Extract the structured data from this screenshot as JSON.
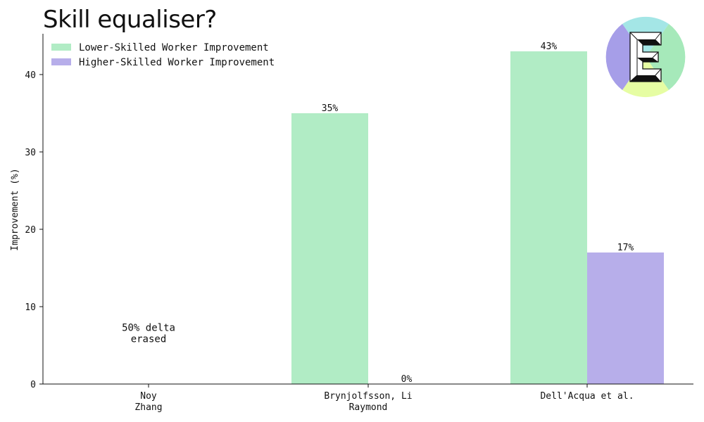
{
  "title": "Skill equaliser?",
  "colors": {
    "lower": "#b1ecc5",
    "higher": "#b7aeea",
    "logo_top": "#a4e6e6",
    "logo_right": "#a6e9ba",
    "logo_bottom": "#e6fda3",
    "logo_left": "#a69ee8"
  },
  "logo_icon": "E-monogram-logo",
  "chart_data": {
    "type": "bar",
    "categories": [
      [
        "Noy",
        "Zhang"
      ],
      [
        "Brynjolfsson, Li",
        "Raymond"
      ],
      [
        "Dell'Acqua et al."
      ]
    ],
    "series": [
      {
        "name": "Lower-Skilled Worker Improvement",
        "values": [
          null,
          35,
          43
        ],
        "labels": [
          "",
          "35%",
          "43%"
        ]
      },
      {
        "name": "Higher-Skilled Worker Improvement",
        "values": [
          null,
          0,
          17
        ],
        "labels": [
          "",
          "0%",
          "17%"
        ]
      }
    ],
    "ylabel": "Improvement (%)",
    "xlabel": "",
    "ylim": [
      0,
      45
    ],
    "yticks": [
      0,
      10,
      20,
      30,
      40
    ],
    "annotation": {
      "lines": [
        "50% delta",
        "erased"
      ],
      "category_index": 0,
      "y": 6.5
    },
    "legend_position": "top-left",
    "grid": false
  }
}
